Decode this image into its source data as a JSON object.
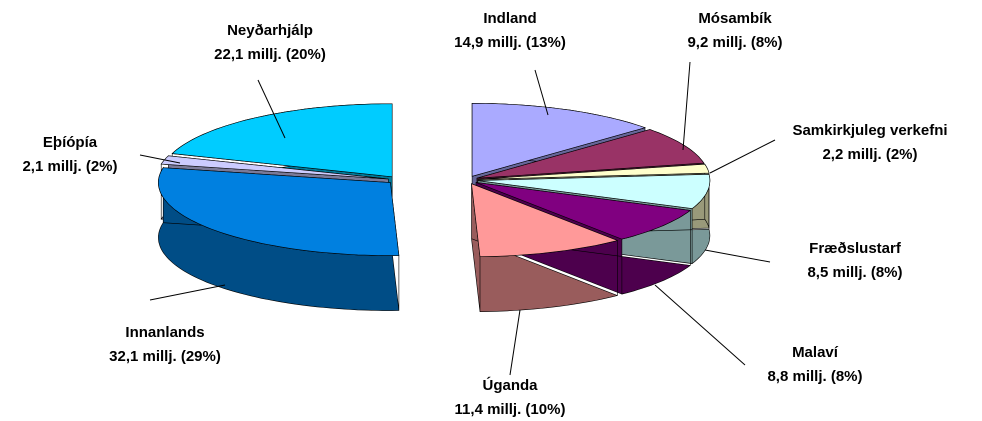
{
  "chart_data": {
    "type": "pie3d",
    "categories": [
      "Indland",
      "Mósambík",
      "Samkirkjuleg verkefni",
      "Fræðslustarf",
      "Malaví",
      "Úganda",
      "Innanlands",
      "Eþíópía",
      "Neyðarhjálp"
    ],
    "values": [
      14.9,
      9.2,
      2.2,
      8.5,
      8.8,
      11.4,
      32.1,
      2.1,
      22.1
    ],
    "value_labels": [
      "14,9 millj. (13%)",
      "9,2 millj. (8%)",
      "2,2 millj. (2%)",
      "8,5 millj. (8%)",
      "8,8 millj. (8%)",
      "11,4 millj. (10%)",
      "32,1 millj. (29%)",
      "2,1 millj. (2%)",
      "22,1 millj. (20%)"
    ],
    "colors": [
      "#aaaaff",
      "#993366",
      "#ffffcc",
      "#ccffff",
      "#800080",
      "#ff9999",
      "#0080e0",
      "#ccccff",
      "#00ccff"
    ]
  }
}
